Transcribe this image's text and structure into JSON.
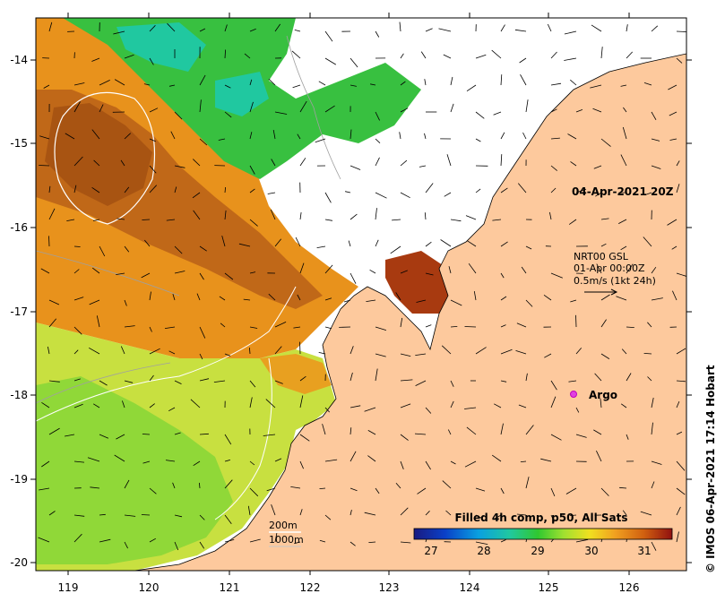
{
  "map": {
    "lon_ticks": [
      "119",
      "120",
      "121",
      "122",
      "123",
      "124",
      "125",
      "126"
    ],
    "lat_ticks": [
      "-14",
      "-15",
      "-16",
      "-17",
      "-18",
      "-19",
      "-20"
    ],
    "date_label": "04-Apr-2021 20Z",
    "current_source": "NRT00 GSL",
    "current_time": "01-Apr 00:00Z",
    "current_scale": "0.5m/s (1kt 24h)",
    "argo_label": "Argo",
    "contour_200": "200m",
    "contour_1000": "1000m",
    "colorbar_title": "Filled 4h comp, p50, All Sats",
    "colorbar_ticks": [
      "27",
      "28",
      "29",
      "30",
      "31"
    ],
    "credit": "© IMOS 06-Apr-2021 17:14 Hobart",
    "colors": {
      "land": "#fdc99d",
      "argo": "#e040e0",
      "colorbar": [
        "#1a1a80",
        "#0a40c8",
        "#0aa0e0",
        "#20c8a0",
        "#30c830",
        "#a0e030",
        "#f0e020",
        "#f0a020",
        "#d06010",
        "#901010"
      ]
    }
  }
}
